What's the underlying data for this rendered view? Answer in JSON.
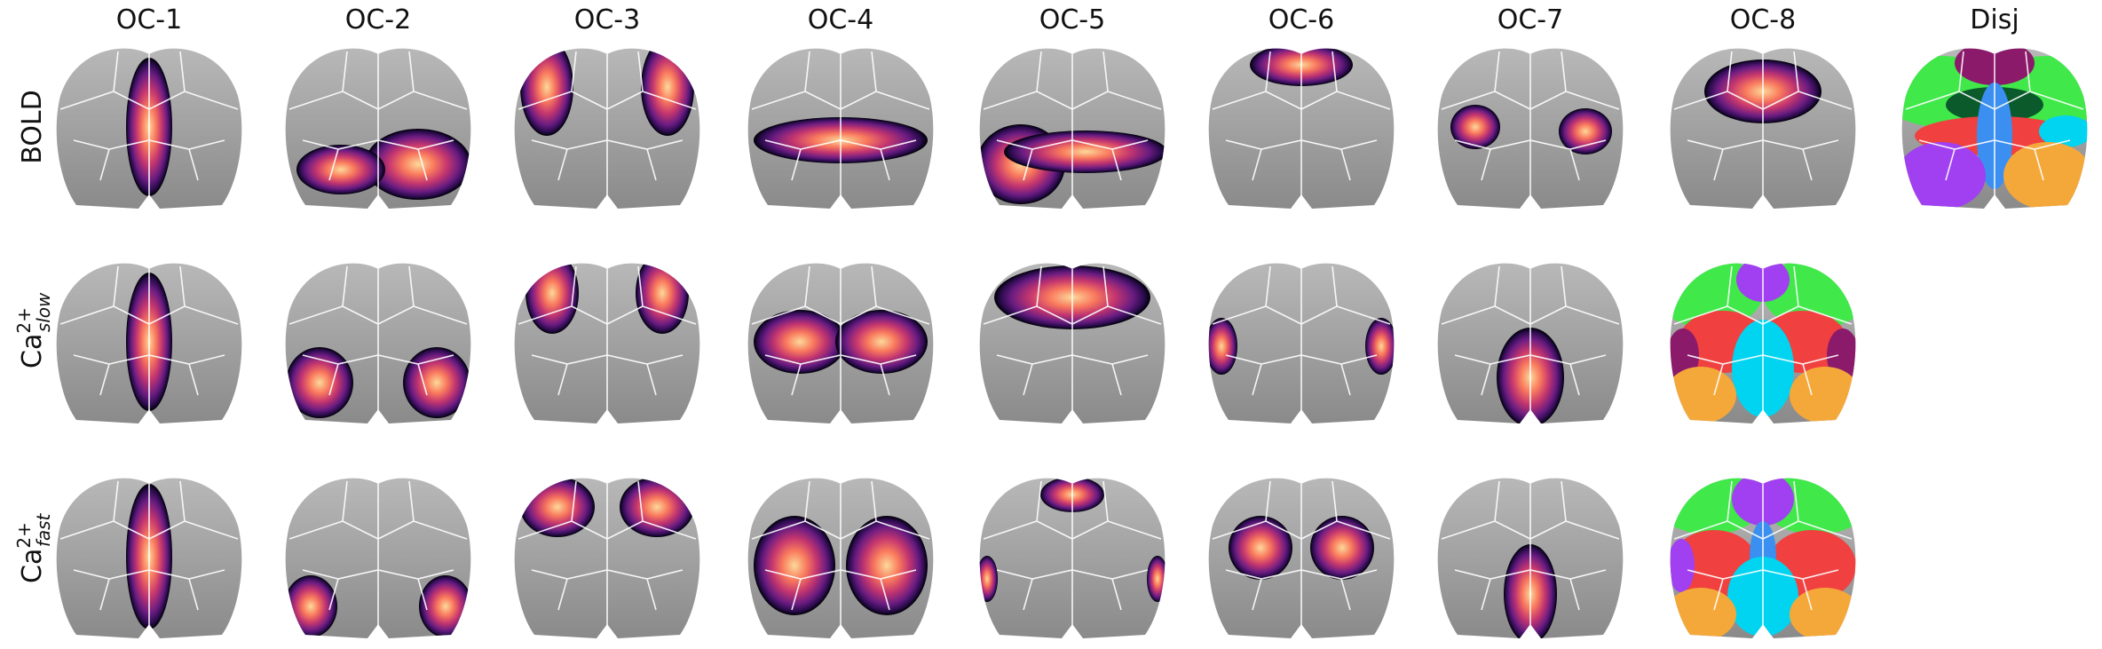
{
  "columns": [
    "OC-1",
    "OC-2",
    "OC-3",
    "OC-4",
    "OC-5",
    "OC-6",
    "OC-7",
    "OC-8",
    "Disj"
  ],
  "rows": [
    {
      "label": "BOLD"
    },
    {
      "base": "Ca",
      "sup": "2+",
      "sub": "slow"
    },
    {
      "base": "Ca",
      "sup": "2+",
      "sub": "fast"
    }
  ]
}
